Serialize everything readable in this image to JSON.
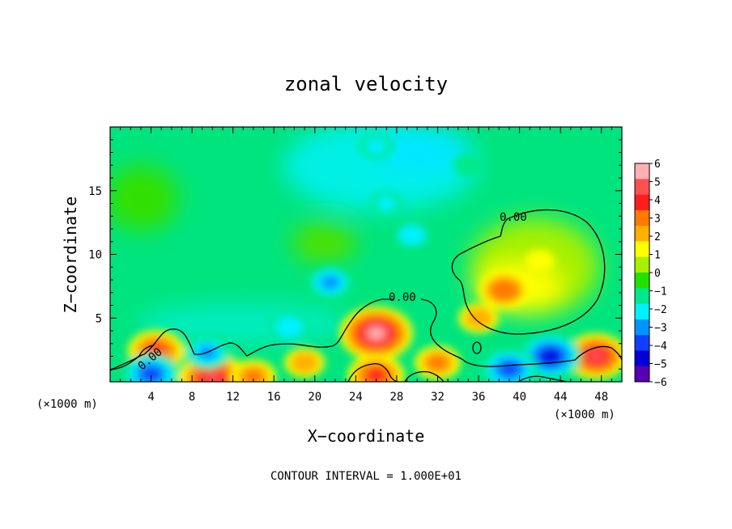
{
  "chart_data": {
    "type": "heatmap",
    "title": "zonal velocity",
    "xlabel": "X−coordinate",
    "ylabel": "Z−coordinate",
    "x_unit_note_left": "(×1000 m)",
    "x_unit_note_right": "(×1000 m)",
    "xlim": [
      0,
      50
    ],
    "ylim": [
      0,
      20
    ],
    "x_ticks": [
      4,
      8,
      12,
      16,
      20,
      24,
      28,
      32,
      36,
      40,
      44,
      48
    ],
    "y_ticks": [
      5,
      10,
      15
    ],
    "footer": "CONTOUR INTERVAL = 1.000E+01",
    "contour_labels": [
      "0.00",
      "0.00",
      "0.00"
    ],
    "colorbar": {
      "range": [
        -6,
        6
      ],
      "ticks": [
        "6",
        "5",
        "4",
        "3",
        "2",
        "1",
        "0",
        "−1",
        "−2",
        "−3",
        "−4",
        "−5",
        "−6"
      ],
      "colors": [
        "#ffb0b0",
        "#ff5050",
        "#ff1e1e",
        "#ff7a00",
        "#ffb000",
        "#ffff00",
        "#a6f000",
        "#22e000",
        "#00e98a",
        "#00f0ff",
        "#0096ff",
        "#1040ff",
        "#0000d8",
        "#5a00b0"
      ]
    },
    "features": [
      {
        "x": 38.5,
        "z": 7.2,
        "value": 3.4
      },
      {
        "x": 42,
        "z": 9.5,
        "value": 1.5
      },
      {
        "x": 26,
        "z": 3.8,
        "value": 5.5
      },
      {
        "x": 4.5,
        "z": 2.4,
        "value": 4
      },
      {
        "x": 47.5,
        "z": 2,
        "value": 4.5
      },
      {
        "x": 10,
        "z": 0.3,
        "value": 5
      },
      {
        "x": 26,
        "z": 0.5,
        "value": 4
      },
      {
        "x": 14,
        "z": 0.4,
        "value": 3
      },
      {
        "x": 19,
        "z": 1.5,
        "value": 2.5
      },
      {
        "x": 32,
        "z": 1.5,
        "value": 3
      },
      {
        "x": 21.5,
        "z": 7.8,
        "value": -3
      },
      {
        "x": 17.5,
        "z": 4.3,
        "value": -2.5
      },
      {
        "x": 9.5,
        "z": 2.3,
        "value": -3
      },
      {
        "x": 43,
        "z": 2,
        "value": -4.5
      },
      {
        "x": 39,
        "z": 1,
        "value": -4
      },
      {
        "x": 29.5,
        "z": 11.5,
        "value": -2.2
      },
      {
        "x": 27,
        "z": 14,
        "value": -1.8
      },
      {
        "x": 26,
        "z": 18.5,
        "value": -2
      },
      {
        "x": 35,
        "z": 17,
        "value": -1.6
      },
      {
        "x": 4,
        "z": 0.6,
        "value": -4
      },
      {
        "x": 36,
        "z": 5,
        "value": 2.5
      }
    ]
  }
}
